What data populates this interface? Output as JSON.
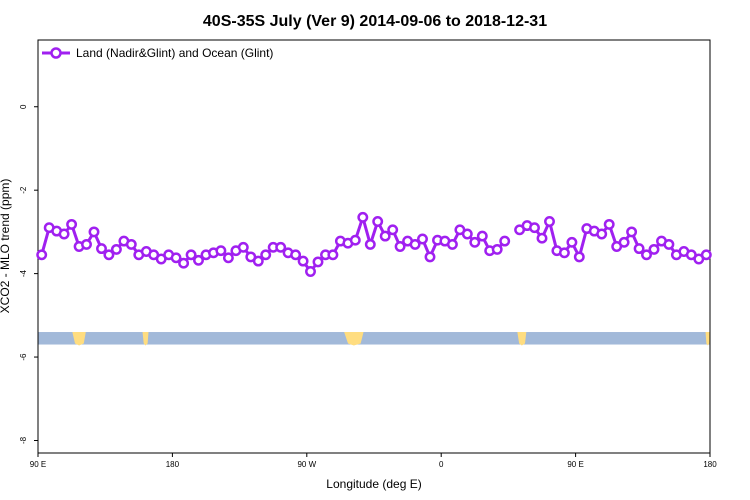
{
  "chart_data": {
    "type": "line",
    "title": "40S-35S July (Ver 9)   2014-09-06 to 2018-12-31",
    "xlabel": "Longitude (deg E)",
    "ylabel": "XCO2 - MLO trend (ppm)",
    "xlim": [
      90,
      540
    ],
    "ylim": [
      -8.3,
      1.6
    ],
    "x_ticks": [
      {
        "value": 90,
        "label": "90 E"
      },
      {
        "value": 180,
        "label": "180"
      },
      {
        "value": 270,
        "label": "90 W"
      },
      {
        "value": 360,
        "label": "0"
      },
      {
        "value": 450,
        "label": "90 E"
      },
      {
        "value": 540,
        "label": "180"
      }
    ],
    "y_ticks": [
      {
        "value": 0,
        "label": "0"
      },
      {
        "value": -2,
        "label": "-2"
      },
      {
        "value": -4,
        "label": "-4"
      },
      {
        "value": -6,
        "label": "-6"
      },
      {
        "value": -8,
        "label": "-8"
      }
    ],
    "legend_position": "top-left",
    "grid": false,
    "series": [
      {
        "name": "Land (Nadir&Glint) and Ocean (Glint)",
        "color": "#a020f0",
        "points": [
          [
            92.5,
            -3.55
          ],
          [
            97.5,
            -2.9
          ],
          [
            102.5,
            -2.98
          ],
          [
            107.5,
            -3.05
          ],
          [
            112.5,
            -2.82
          ],
          [
            117.5,
            -3.35
          ],
          [
            122.5,
            -3.3
          ],
          [
            127.5,
            -3.0
          ],
          [
            132.5,
            -3.4
          ],
          [
            137.5,
            -3.55
          ],
          [
            142.5,
            -3.42
          ],
          [
            147.5,
            -3.22
          ],
          [
            152.5,
            -3.3
          ],
          [
            157.5,
            -3.55
          ],
          [
            162.5,
            -3.47
          ],
          [
            167.5,
            -3.55
          ],
          [
            172.5,
            -3.65
          ],
          [
            177.5,
            -3.55
          ],
          [
            182.5,
            -3.62
          ],
          [
            187.5,
            -3.75
          ],
          [
            192.5,
            -3.55
          ],
          [
            197.5,
            -3.68
          ],
          [
            202.5,
            -3.55
          ],
          [
            207.5,
            -3.5
          ],
          [
            212.5,
            -3.45
          ],
          [
            217.5,
            -3.62
          ],
          [
            222.5,
            -3.45
          ],
          [
            227.5,
            -3.37
          ],
          [
            232.5,
            -3.6
          ],
          [
            237.5,
            -3.7
          ],
          [
            242.5,
            -3.55
          ],
          [
            247.5,
            -3.37
          ],
          [
            252.5,
            -3.37
          ],
          [
            257.5,
            -3.5
          ],
          [
            262.5,
            -3.55
          ],
          [
            267.5,
            -3.7
          ],
          [
            272.5,
            -3.95
          ],
          [
            277.5,
            -3.72
          ],
          [
            282.5,
            -3.55
          ],
          [
            287.5,
            -3.55
          ],
          [
            292.5,
            -3.22
          ],
          [
            297.5,
            -3.27
          ],
          [
            302.5,
            -3.2
          ],
          [
            307.5,
            -2.65
          ],
          [
            312.5,
            -3.3
          ],
          [
            317.5,
            -2.75
          ],
          [
            322.5,
            -3.1
          ],
          [
            327.5,
            -2.95
          ],
          [
            332.5,
            -3.35
          ],
          [
            337.5,
            -3.22
          ],
          [
            342.5,
            -3.3
          ],
          [
            347.5,
            -3.17
          ],
          [
            352.5,
            -3.6
          ],
          [
            357.5,
            -3.2
          ],
          [
            362.5,
            -3.22
          ],
          [
            367.5,
            -3.3
          ],
          [
            372.5,
            -2.95
          ],
          [
            377.5,
            -3.05
          ],
          [
            382.5,
            -3.25
          ],
          [
            387.5,
            -3.1
          ],
          [
            392.5,
            -3.45
          ],
          [
            397.5,
            -3.42
          ],
          [
            402.5,
            -3.22
          ],
          null,
          [
            412.5,
            -2.95
          ],
          [
            417.5,
            -2.85
          ],
          [
            422.5,
            -2.9
          ],
          [
            427.5,
            -3.15
          ],
          [
            432.5,
            -2.75
          ],
          [
            437.5,
            -3.45
          ],
          [
            442.5,
            -3.5
          ],
          [
            447.5,
            -3.25
          ],
          [
            452.5,
            -3.6
          ],
          [
            457.5,
            -2.92
          ],
          [
            462.5,
            -2.98
          ],
          [
            467.5,
            -3.05
          ],
          [
            472.5,
            -2.82
          ],
          [
            477.5,
            -3.35
          ],
          [
            482.5,
            -3.25
          ],
          [
            487.5,
            -3.0
          ],
          [
            492.5,
            -3.4
          ],
          [
            497.5,
            -3.55
          ],
          [
            502.5,
            -3.42
          ],
          [
            507.5,
            -3.22
          ],
          [
            512.5,
            -3.3
          ],
          [
            517.5,
            -3.55
          ],
          [
            522.5,
            -3.47
          ],
          [
            527.5,
            -3.55
          ],
          [
            532.5,
            -3.65
          ],
          [
            537.5,
            -3.55
          ]
        ]
      }
    ],
    "map_strip": {
      "y_range": [
        -5.7,
        -5.4
      ],
      "ocean_color": "#a2b9d9",
      "land_color": "#ffdd80",
      "land_spans": [
        [
          113,
          122
        ],
        [
          160,
          164
        ],
        [
          295,
          308
        ],
        [
          411,
          417
        ],
        [
          537,
          540
        ]
      ]
    }
  }
}
